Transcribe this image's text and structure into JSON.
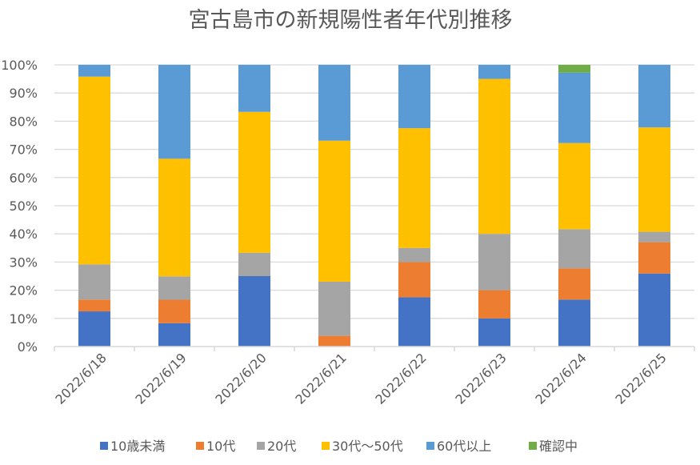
{
  "chart_data": {
    "type": "bar",
    "stacked": "percent",
    "title": "宮古島市の新規陽性者年代別推移",
    "xlabel": "",
    "ylabel": "",
    "ylim": [
      0,
      100
    ],
    "y_ticks": [
      "0%",
      "10%",
      "20%",
      "30%",
      "40%",
      "50%",
      "60%",
      "70%",
      "80%",
      "90%",
      "100%"
    ],
    "grid": true,
    "legend_position": "bottom",
    "categories": [
      "2022/6/18",
      "2022/6/19",
      "2022/6/20",
      "2022/6/21",
      "2022/6/22",
      "2022/6/23",
      "2022/6/24",
      "2022/6/25"
    ],
    "series": [
      {
        "name": "10歳未満",
        "color": "#4472C4",
        "values": [
          12.5,
          8.3,
          25.0,
          0.0,
          17.5,
          10.0,
          16.7,
          25.9
        ]
      },
      {
        "name": "10代",
        "color": "#ED7D31",
        "values": [
          4.2,
          8.3,
          0.0,
          3.8,
          12.5,
          10.0,
          11.1,
          11.1
        ]
      },
      {
        "name": "20代",
        "color": "#A5A5A5",
        "values": [
          12.5,
          8.3,
          8.3,
          19.2,
          5.0,
          20.0,
          13.9,
          3.7
        ]
      },
      {
        "name": "30代～50代",
        "color": "#FFC000",
        "values": [
          66.7,
          41.7,
          50.0,
          50.0,
          42.5,
          55.0,
          30.6,
          37.0
        ]
      },
      {
        "name": "60代以上",
        "color": "#5B9BD5",
        "values": [
          4.2,
          33.3,
          16.7,
          26.9,
          22.5,
          5.0,
          25.0,
          22.2
        ]
      },
      {
        "name": "確認中",
        "color": "#70AD47",
        "values": [
          0.0,
          0.0,
          0.0,
          0.0,
          0.0,
          0.0,
          2.8,
          0.0
        ]
      }
    ]
  }
}
